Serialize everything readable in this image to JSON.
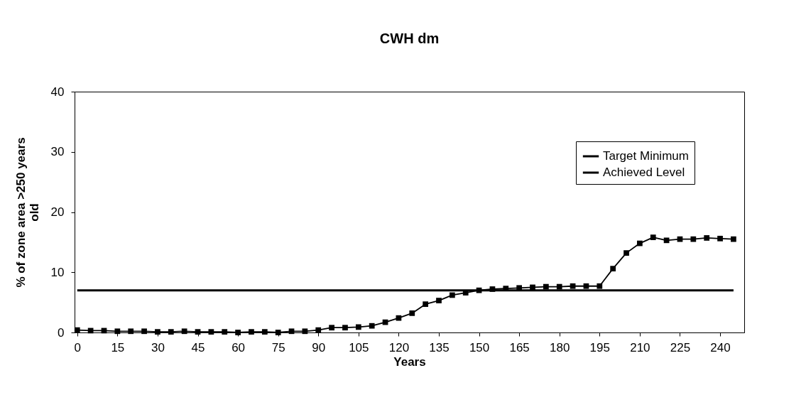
{
  "chart_data": {
    "type": "line",
    "title": "CWH dm",
    "xlabel": "Years",
    "ylabel": "% of zone area >250 years old",
    "x": [
      0,
      5,
      10,
      15,
      20,
      25,
      30,
      35,
      40,
      45,
      50,
      55,
      60,
      65,
      70,
      75,
      80,
      85,
      90,
      95,
      100,
      105,
      110,
      115,
      120,
      125,
      130,
      135,
      140,
      145,
      150,
      155,
      160,
      165,
      170,
      175,
      180,
      185,
      190,
      195,
      200,
      205,
      210,
      215,
      220,
      225,
      230,
      235,
      240,
      245
    ],
    "series": [
      {
        "name": "Target Minimum",
        "color": "#000000",
        "marker": "none",
        "values": [
          7,
          7,
          7,
          7,
          7,
          7,
          7,
          7,
          7,
          7,
          7,
          7,
          7,
          7,
          7,
          7,
          7,
          7,
          7,
          7,
          7,
          7,
          7,
          7,
          7,
          7,
          7,
          7,
          7,
          7,
          7,
          7,
          7,
          7,
          7,
          7,
          7,
          7,
          7,
          7,
          7,
          7,
          7,
          7,
          7,
          7,
          7,
          7,
          7,
          7
        ]
      },
      {
        "name": "Achieved Level",
        "color": "#000000",
        "marker": "square",
        "values": [
          0.4,
          0.3,
          0.3,
          0.2,
          0.2,
          0.2,
          0.1,
          0.1,
          0.2,
          0.1,
          0.1,
          0.1,
          0,
          0.1,
          0.1,
          0,
          0.2,
          0.2,
          0.4,
          0.8,
          0.8,
          0.9,
          1.1,
          1.7,
          2.4,
          3.2,
          4.7,
          5.3,
          6.2,
          6.6,
          7,
          7.2,
          7.3,
          7.4,
          7.5,
          7.6,
          7.6,
          7.7,
          7.7,
          7.7,
          10.6,
          13.2,
          14.8,
          15.8,
          15.3,
          15.5,
          15.5,
          15.7,
          15.6,
          15.5
        ]
      }
    ],
    "xlim": [
      -1,
      249
    ],
    "xticks": [
      0,
      15,
      30,
      45,
      60,
      75,
      90,
      105,
      120,
      135,
      150,
      165,
      180,
      195,
      210,
      225,
      240
    ],
    "ylim": [
      0,
      40
    ],
    "yticks": [
      0,
      10,
      20,
      30,
      40
    ],
    "grid": false,
    "legend": "top right"
  }
}
